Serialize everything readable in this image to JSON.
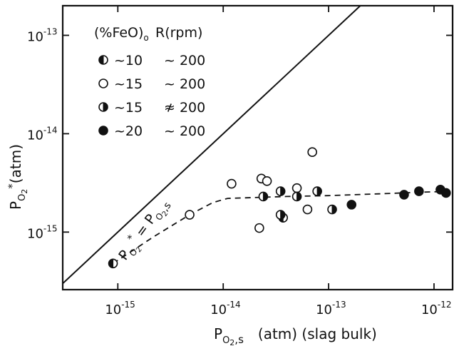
{
  "chart_data": {
    "type": "scatter",
    "xscale": "log",
    "yscale": "log",
    "xlim": [
      3e-16,
      1.5e-12
    ],
    "ylim": [
      2.6e-16,
      2e-13
    ],
    "xlabel_main": "P",
    "xlabel_sub": "O",
    "xlabel_sub2": "2",
    "xlabel_comma_s": ",s",
    "xlabel_rest": "(atm) (slag bulk)",
    "ylabel_main": "P",
    "ylabel_sub": "O",
    "ylabel_sub2": "2",
    "ylabel_star": "*",
    "ylabel_rest": "(atm)",
    "x_ticks": [
      {
        "value": 1e-15,
        "base": "10",
        "exp": "-15"
      },
      {
        "value": 1e-14,
        "base": "10",
        "exp": "-14"
      },
      {
        "value": 1e-13,
        "base": "10",
        "exp": "-13"
      },
      {
        "value": 1e-12,
        "base": "10",
        "exp": "-12"
      }
    ],
    "y_ticks": [
      {
        "value": 1e-13,
        "base": "10",
        "exp": "-13"
      },
      {
        "value": 1e-14,
        "base": "10",
        "exp": "-14"
      },
      {
        "value": 1e-15,
        "base": "10",
        "exp": "-15"
      }
    ],
    "legend": {
      "placement": "top-left",
      "header_feo": "(%FeO)",
      "header_feo_sub": "o",
      "header_r": "R(rpm)",
      "entries": [
        {
          "marker": "half-left",
          "feo": "~10",
          "rpm": "~ 200"
        },
        {
          "marker": "open",
          "feo": "~15",
          "rpm": "~ 200"
        },
        {
          "marker": "half-right",
          "feo": "~15",
          "rpm": "≉ 200"
        },
        {
          "marker": "filled",
          "feo": "~20",
          "rpm": "~ 200"
        }
      ]
    },
    "diagonal_label": "P*O2 = PO2,s",
    "diagonal_label_parts": {
      "p": "P",
      "o": "O",
      "two": "2",
      "star": "*",
      "eq": " = P",
      "o2": "O",
      "two2": "2",
      "s": ",s"
    },
    "series": [
      {
        "marker": "half-left",
        "points": [
          [
            9e-16,
            4.8e-16
          ],
          [
            3.7e-14,
            1.4e-15
          ]
        ]
      },
      {
        "marker": "open",
        "points": [
          [
            4.8e-15,
            1.5e-15
          ],
          [
            1.2e-14,
            3.1e-15
          ],
          [
            2.3e-14,
            3.5e-15
          ],
          [
            2.6e-14,
            3.3e-15
          ],
          [
            2.2e-14,
            1.1e-15
          ],
          [
            5e-14,
            2.8e-15
          ],
          [
            7e-14,
            6.5e-15
          ],
          [
            6.3e-14,
            1.7e-15
          ]
        ]
      },
      {
        "marker": "half-right",
        "points": [
          [
            2.4e-14,
            2.3e-15
          ],
          [
            3.5e-14,
            1.5e-15
          ],
          [
            3.5e-14,
            2.6e-15
          ],
          [
            5e-14,
            2.3e-15
          ],
          [
            7.8e-14,
            2.6e-15
          ],
          [
            1.08e-13,
            1.7e-15
          ]
        ]
      },
      {
        "marker": "filled",
        "points": [
          [
            1.65e-13,
            1.9e-15
          ],
          [
            5.2e-13,
            2.4e-15
          ],
          [
            7.2e-13,
            2.6e-15
          ],
          [
            1.15e-12,
            2.7e-15
          ],
          [
            1.3e-12,
            2.5e-15
          ]
        ]
      }
    ],
    "diagonal_line": [
      [
        3e-16,
        3e-16
      ],
      [
        2e-13,
        2e-13
      ]
    ],
    "fit_curve": [
      [
        9e-16,
        4.8e-16
      ],
      [
        2.2e-15,
        9e-16
      ],
      [
        4.8e-15,
        1.5e-15
      ],
      [
        8e-15,
        2e-15
      ],
      [
        1.1e-14,
        2.2e-15
      ],
      [
        4e-14,
        2.3e-15
      ],
      [
        1e-13,
        2.35e-15
      ],
      [
        3e-13,
        2.45e-15
      ],
      [
        8e-13,
        2.55e-15
      ],
      [
        1.5e-12,
        2.6e-15
      ]
    ]
  }
}
